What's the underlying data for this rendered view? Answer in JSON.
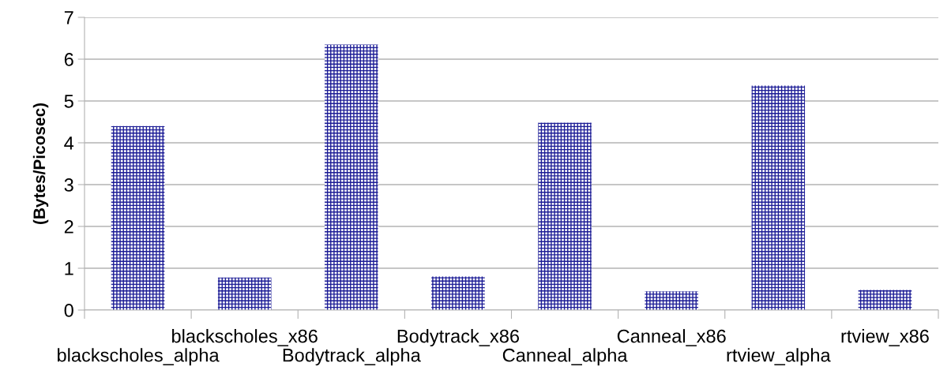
{
  "chart_data": {
    "type": "bar",
    "ylabel": "(Bytes/Picosec)",
    "categories": [
      "blackscholes_alpha",
      "blackscholes_x86",
      "Bodytrack_alpha",
      "Bodytrack_x86",
      "Canneal_alpha",
      "Canneal_x86",
      "rtview_alpha",
      "rtview_x86"
    ],
    "values": [
      4.4,
      0.78,
      6.35,
      0.8,
      4.48,
      0.45,
      5.37,
      0.48
    ],
    "color": "#1c1c96",
    "ylim": [
      0,
      7
    ],
    "yticks": [
      0,
      1,
      2,
      3,
      4,
      5,
      6,
      7
    ],
    "grid": "y"
  }
}
